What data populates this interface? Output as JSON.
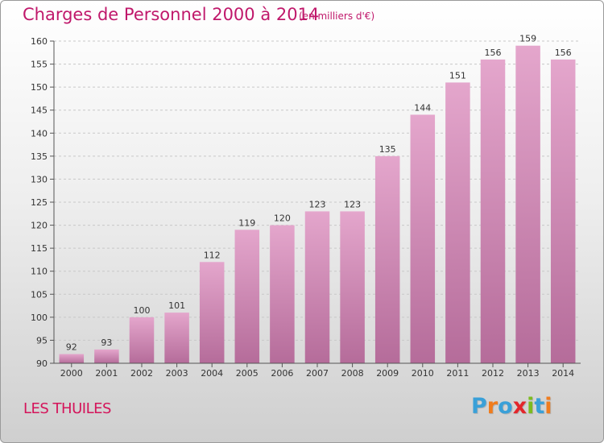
{
  "chart_data": {
    "type": "bar",
    "title": "Charges de Personnel 2000 à 2014",
    "subtitle": "(en milliers d'€)",
    "categories": [
      "2000",
      "2001",
      "2002",
      "2003",
      "2004",
      "2005",
      "2006",
      "2007",
      "2008",
      "2009",
      "2010",
      "2011",
      "2012",
      "2013",
      "2014"
    ],
    "values": [
      92,
      93,
      100,
      101,
      112,
      119,
      120,
      123,
      123,
      135,
      144,
      151,
      156,
      159,
      156
    ],
    "ylim": [
      90,
      160
    ],
    "yticks": [
      90,
      95,
      100,
      105,
      110,
      115,
      120,
      125,
      130,
      135,
      140,
      145,
      150,
      155,
      160
    ],
    "grid": true,
    "bar_color_top": "#e4a6cc",
    "bar_color_bottom": "#b56c9a"
  },
  "footer": {
    "commune": "LES THUILES"
  },
  "logo": {
    "text": "Proxiti",
    "letters": [
      "P",
      "r",
      "o",
      "x",
      "i",
      "t",
      "i"
    ],
    "colors": [
      "#3aa0d8",
      "#f07c1d",
      "#3aa0d8",
      "#e3262b",
      "#7cbb1f",
      "#3aa0d8",
      "#f07c1d"
    ]
  }
}
